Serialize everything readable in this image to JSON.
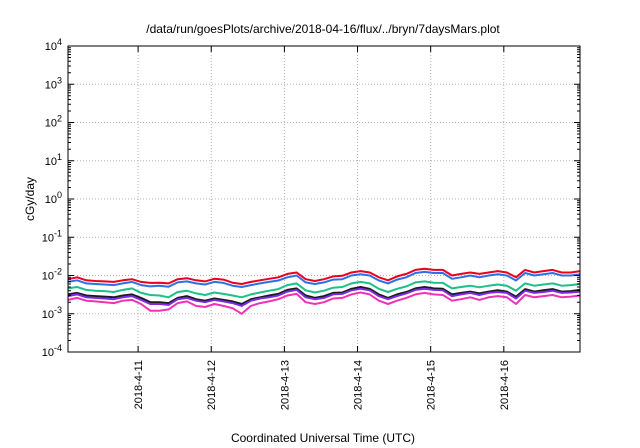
{
  "chart_data": {
    "type": "line",
    "title": "/data/run/goesPlots/archive/2018-04-16/flux/../bryn/7daysMars.plot",
    "xlabel": "Coordinated Universal Time (UTC)",
    "ylabel": "cGy/day",
    "yscale": "log",
    "ylim": [
      0.0001,
      10000
    ],
    "y_ticks": [
      {
        "exp": "-4",
        "value": 0.0001
      },
      {
        "exp": "-3",
        "value": 0.001
      },
      {
        "exp": "-2",
        "value": 0.01
      },
      {
        "exp": "-1",
        "value": 0.1
      },
      {
        "exp": "0",
        "value": 1
      },
      {
        "exp": "1",
        "value": 10
      },
      {
        "exp": "2",
        "value": 100
      },
      {
        "exp": "3",
        "value": 1000
      },
      {
        "exp": "4",
        "value": 10000
      }
    ],
    "y_tick_base": "10",
    "xlim": [
      "2018-04-10T01:00",
      "2018-04-17T01:00"
    ],
    "x_ticks": [
      "2018-4-11",
      "2018-4-12",
      "2018-4-13",
      "2018-4-14",
      "2018-4-15",
      "2018-4-16"
    ],
    "grid": true,
    "x": [
      "2018-04-10T01:00",
      "2018-04-10T04:00",
      "2018-04-10T07:00",
      "2018-04-10T10:00",
      "2018-04-10T13:00",
      "2018-04-10T16:00",
      "2018-04-10T19:00",
      "2018-04-10T22:00",
      "2018-04-11T01:00",
      "2018-04-11T04:00",
      "2018-04-11T07:00",
      "2018-04-11T10:00",
      "2018-04-11T13:00",
      "2018-04-11T16:00",
      "2018-04-11T19:00",
      "2018-04-11T22:00",
      "2018-04-12T01:00",
      "2018-04-12T04:00",
      "2018-04-12T07:00",
      "2018-04-12T10:00",
      "2018-04-12T13:00",
      "2018-04-12T16:00",
      "2018-04-12T19:00",
      "2018-04-12T22:00",
      "2018-04-13T01:00",
      "2018-04-13T04:00",
      "2018-04-13T07:00",
      "2018-04-13T10:00",
      "2018-04-13T13:00",
      "2018-04-13T16:00",
      "2018-04-13T19:00",
      "2018-04-13T22:00",
      "2018-04-14T01:00",
      "2018-04-14T04:00",
      "2018-04-14T07:00",
      "2018-04-14T10:00",
      "2018-04-14T13:00",
      "2018-04-14T16:00",
      "2018-04-14T19:00",
      "2018-04-14T22:00",
      "2018-04-15T01:00",
      "2018-04-15T04:00",
      "2018-04-15T07:00",
      "2018-04-15T10:00",
      "2018-04-15T13:00",
      "2018-04-15T16:00",
      "2018-04-15T19:00",
      "2018-04-15T22:00",
      "2018-04-16T01:00",
      "2018-04-16T04:00",
      "2018-04-16T07:00",
      "2018-04-16T10:00",
      "2018-04-16T13:00",
      "2018-04-16T16:00",
      "2018-04-16T19:00",
      "2018-04-16T22:00",
      "2018-04-17T01:00"
    ],
    "series": [
      {
        "color": "#e8001c",
        "values": [
          0.008,
          0.009,
          0.0075,
          0.0072,
          0.007,
          0.0068,
          0.0075,
          0.008,
          0.0068,
          0.0064,
          0.0065,
          0.0062,
          0.008,
          0.0085,
          0.0075,
          0.007,
          0.0082,
          0.0078,
          0.0065,
          0.006,
          0.0068,
          0.0075,
          0.0082,
          0.009,
          0.011,
          0.012,
          0.008,
          0.0072,
          0.008,
          0.0095,
          0.0098,
          0.012,
          0.013,
          0.012,
          0.009,
          0.0075,
          0.0095,
          0.011,
          0.014,
          0.015,
          0.014,
          0.014,
          0.01,
          0.011,
          0.012,
          0.011,
          0.012,
          0.013,
          0.012,
          0.009,
          0.014,
          0.012,
          0.013,
          0.014,
          0.012,
          0.012,
          0.013
        ]
      },
      {
        "color": "#2e6fe8",
        "values": [
          0.0068,
          0.0075,
          0.0062,
          0.006,
          0.0058,
          0.0056,
          0.0062,
          0.0068,
          0.0056,
          0.0052,
          0.0054,
          0.0051,
          0.0066,
          0.007,
          0.0062,
          0.0058,
          0.0068,
          0.0064,
          0.0054,
          0.005,
          0.0056,
          0.0062,
          0.0068,
          0.0074,
          0.009,
          0.01,
          0.0066,
          0.006,
          0.0066,
          0.0078,
          0.008,
          0.01,
          0.0108,
          0.01,
          0.0074,
          0.0062,
          0.0078,
          0.009,
          0.0116,
          0.0124,
          0.0116,
          0.0116,
          0.0082,
          0.009,
          0.01,
          0.009,
          0.01,
          0.0108,
          0.01,
          0.0074,
          0.0116,
          0.01,
          0.0108,
          0.0116,
          0.01,
          0.01,
          0.0108
        ]
      },
      {
        "color": "#1dbf8a",
        "values": [
          0.0046,
          0.005,
          0.0042,
          0.004,
          0.0039,
          0.0037,
          0.0042,
          0.0046,
          0.0035,
          0.0031,
          0.003,
          0.0027,
          0.0037,
          0.004,
          0.0034,
          0.0031,
          0.0036,
          0.0033,
          0.003,
          0.0027,
          0.0032,
          0.0036,
          0.004,
          0.0044,
          0.0056,
          0.0062,
          0.0041,
          0.0036,
          0.004,
          0.0048,
          0.005,
          0.0062,
          0.0068,
          0.0062,
          0.0045,
          0.0037,
          0.0045,
          0.0052,
          0.0066,
          0.007,
          0.0065,
          0.0064,
          0.0046,
          0.005,
          0.0054,
          0.0049,
          0.0054,
          0.0058,
          0.0054,
          0.004,
          0.0062,
          0.0054,
          0.0058,
          0.0062,
          0.0054,
          0.0056,
          0.006
        ]
      },
      {
        "color": "#1a1a1a",
        "values": [
          0.0032,
          0.0035,
          0.003,
          0.0029,
          0.0028,
          0.0027,
          0.003,
          0.0032,
          0.0026,
          0.002,
          0.002,
          0.0019,
          0.0026,
          0.0029,
          0.0024,
          0.0022,
          0.0025,
          0.0023,
          0.0021,
          0.0018,
          0.0024,
          0.0027,
          0.003,
          0.0033,
          0.0042,
          0.0046,
          0.003,
          0.0026,
          0.0029,
          0.0035,
          0.0036,
          0.0045,
          0.005,
          0.0045,
          0.0032,
          0.0026,
          0.0032,
          0.0037,
          0.0046,
          0.005,
          0.0046,
          0.0045,
          0.0032,
          0.0035,
          0.0038,
          0.0034,
          0.0038,
          0.0041,
          0.0038,
          0.0028,
          0.0044,
          0.0038,
          0.0041,
          0.0044,
          0.0038,
          0.0039,
          0.0042
        ]
      },
      {
        "color": "#7b2be2",
        "values": [
          0.0029,
          0.0032,
          0.0027,
          0.0026,
          0.0025,
          0.0024,
          0.0027,
          0.0029,
          0.0023,
          0.0018,
          0.0018,
          0.0017,
          0.0024,
          0.0026,
          0.0022,
          0.002,
          0.0023,
          0.0021,
          0.0019,
          0.0016,
          0.0022,
          0.0025,
          0.0027,
          0.003,
          0.0038,
          0.0042,
          0.0027,
          0.0024,
          0.0026,
          0.0032,
          0.0033,
          0.0041,
          0.0045,
          0.0041,
          0.0029,
          0.0024,
          0.0029,
          0.0034,
          0.0042,
          0.0045,
          0.0042,
          0.0041,
          0.0029,
          0.0032,
          0.0035,
          0.0031,
          0.0035,
          0.0037,
          0.0035,
          0.0025,
          0.004,
          0.0035,
          0.0037,
          0.004,
          0.0035,
          0.0036,
          0.0038
        ]
      },
      {
        "color": "#f032b4",
        "values": [
          0.0023,
          0.0026,
          0.0022,
          0.0021,
          0.002,
          0.0019,
          0.0022,
          0.0023,
          0.0018,
          0.0012,
          0.0012,
          0.0013,
          0.0019,
          0.0021,
          0.0016,
          0.0015,
          0.0018,
          0.0016,
          0.0014,
          0.001,
          0.0016,
          0.0019,
          0.0021,
          0.0024,
          0.003,
          0.0033,
          0.002,
          0.0018,
          0.002,
          0.0025,
          0.0026,
          0.0032,
          0.0036,
          0.0032,
          0.0022,
          0.0018,
          0.0022,
          0.0026,
          0.0032,
          0.0035,
          0.0032,
          0.0031,
          0.0022,
          0.0024,
          0.0027,
          0.0023,
          0.0027,
          0.0029,
          0.0027,
          0.0018,
          0.0031,
          0.0027,
          0.0029,
          0.0031,
          0.0027,
          0.0028,
          0.003
        ]
      }
    ]
  }
}
